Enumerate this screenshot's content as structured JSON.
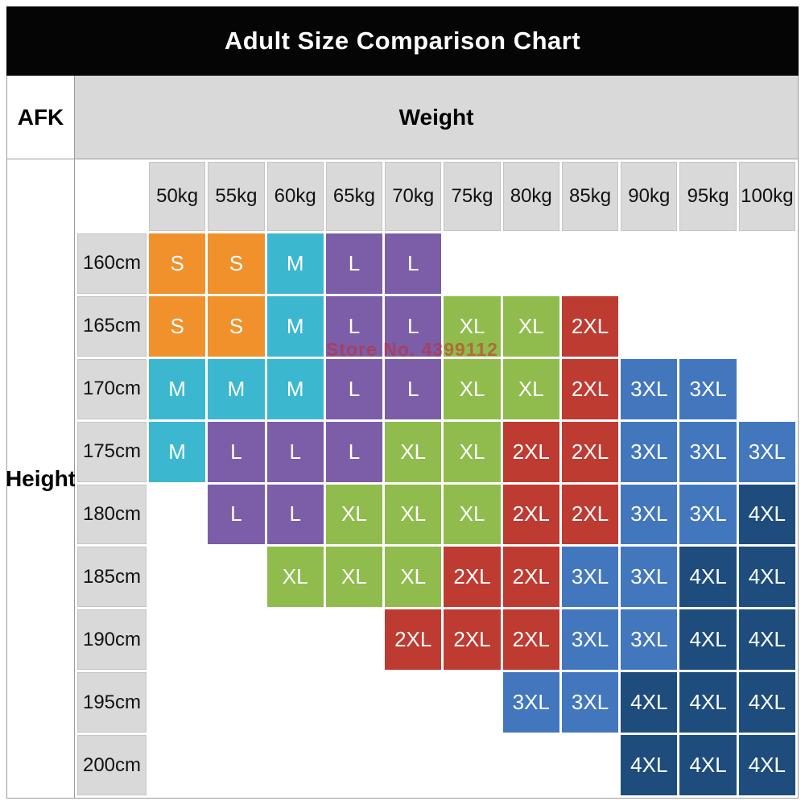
{
  "title": "Adult Size Comparison Chart",
  "axis": {
    "corner_label": "AFK",
    "weight_label": "Weight",
    "height_label": "Height"
  },
  "watermark": "Store No. 4399112",
  "colors": {
    "S": "#F0912C",
    "M": "#3BB8CF",
    "L": "#7B5EA7",
    "XL": "#8FBC4D",
    "2XL": "#BE3B31",
    "3XL": "#4377BD",
    "4XL": "#1E4D7D",
    "header_bg": "#D9D9D9",
    "title_bg": "#050505",
    "title_text": "#FFFFFF"
  },
  "chart_data": {
    "type": "table",
    "title": "Adult Size Comparison Chart",
    "x_axis_title": "Weight",
    "y_axis_title": "Height",
    "columns": [
      "50kg",
      "55kg",
      "60kg",
      "65kg",
      "70kg",
      "75kg",
      "80kg",
      "85kg",
      "90kg",
      "95kg",
      "100kg"
    ],
    "rows": [
      {
        "height": "160cm",
        "sizes": [
          "S",
          "S",
          "M",
          "L",
          "L",
          "",
          "",
          "",
          "",
          "",
          ""
        ]
      },
      {
        "height": "165cm",
        "sizes": [
          "S",
          "S",
          "M",
          "L",
          "L",
          "XL",
          "XL",
          "2XL",
          "",
          "",
          ""
        ]
      },
      {
        "height": "170cm",
        "sizes": [
          "M",
          "M",
          "M",
          "L",
          "L",
          "XL",
          "XL",
          "2XL",
          "3XL",
          "3XL",
          ""
        ]
      },
      {
        "height": "175cm",
        "sizes": [
          "M",
          "L",
          "L",
          "L",
          "XL",
          "XL",
          "2XL",
          "2XL",
          "3XL",
          "3XL",
          "3XL"
        ]
      },
      {
        "height": "180cm",
        "sizes": [
          "",
          "L",
          "L",
          "XL",
          "XL",
          "XL",
          "2XL",
          "2XL",
          "3XL",
          "3XL",
          "4XL"
        ]
      },
      {
        "height": "185cm",
        "sizes": [
          "",
          "",
          "XL",
          "XL",
          "XL",
          "2XL",
          "2XL",
          "3XL",
          "3XL",
          "4XL",
          "4XL"
        ]
      },
      {
        "height": "190cm",
        "sizes": [
          "",
          "",
          "",
          "",
          "2XL",
          "2XL",
          "2XL",
          "3XL",
          "3XL",
          "4XL",
          "4XL"
        ]
      },
      {
        "height": "195cm",
        "sizes": [
          "",
          "",
          "",
          "",
          "",
          "",
          "3XL",
          "3XL",
          "4XL",
          "4XL",
          "4XL"
        ]
      },
      {
        "height": "200cm",
        "sizes": [
          "",
          "",
          "",
          "",
          "",
          "",
          "",
          "",
          "4XL",
          "4XL",
          "4XL"
        ]
      }
    ],
    "legend": {
      "S": "orange",
      "M": "cyan",
      "L": "purple",
      "XL": "green",
      "2XL": "red",
      "3XL": "medium-blue",
      "4XL": "dark-navy"
    }
  }
}
